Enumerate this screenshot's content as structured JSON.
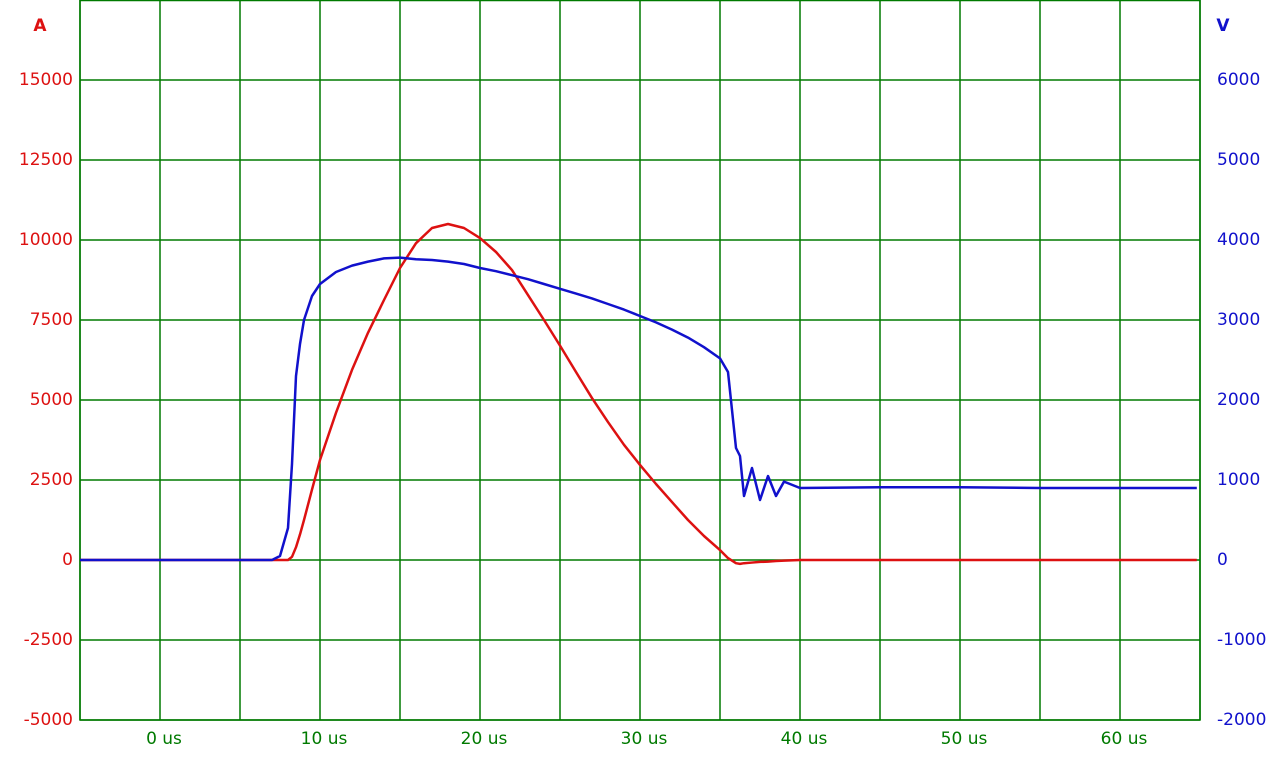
{
  "chart_data": {
    "type": "line",
    "ylabel": "A",
    "y2label": "V",
    "x": [
      -5,
      0,
      5,
      7,
      7.5,
      8,
      8.25,
      8.5,
      8.75,
      9,
      9.5,
      10,
      11,
      12,
      13,
      14,
      15,
      16,
      17,
      18,
      19,
      20,
      21,
      22,
      23,
      24,
      25,
      26,
      27,
      28,
      29,
      30,
      31,
      32,
      33,
      34,
      35,
      35.5,
      36,
      36.25,
      36.5,
      37,
      37.5,
      38,
      38.5,
      39,
      40,
      45,
      50,
      55,
      60,
      64.8
    ],
    "series": [
      {
        "color": "#dd1111",
        "values": [
          0,
          0,
          0,
          0,
          0,
          0,
          100,
          400,
          800,
          1250,
          2200,
          3125,
          4600,
          5940,
          7100,
          8125,
          9125,
          9900,
          10375,
          10500,
          10375,
          10060,
          9625,
          9060,
          8280,
          7500,
          6700,
          5875,
          5060,
          4310,
          3600,
          2970,
          2375,
          1810,
          1250,
          750,
          310,
          60,
          -100,
          -120,
          -100,
          -80,
          -60,
          -50,
          -30,
          -20,
          0,
          0,
          0,
          0,
          0,
          0
        ]
      },
      {
        "color": "#1111cc",
        "axis": "y2",
        "values": [
          0,
          0,
          0,
          0,
          50,
          400,
          1200,
          2300,
          2700,
          3000,
          3300,
          3450,
          3600,
          3680,
          3730,
          3770,
          3780,
          3760,
          3750,
          3730,
          3700,
          3650,
          3610,
          3560,
          3510,
          3450,
          3390,
          3330,
          3270,
          3200,
          3130,
          3050,
          2970,
          2880,
          2780,
          2660,
          2520,
          2350,
          1400,
          1300,
          800,
          1150,
          750,
          1050,
          800,
          980,
          900,
          910,
          910,
          900,
          900,
          900
        ]
      }
    ],
    "xlim": [
      -5,
      65
    ],
    "xticks": [
      {
        "value": 0,
        "label": "0 us"
      },
      {
        "value": 10,
        "label": "10 us"
      },
      {
        "value": 20,
        "label": "20 us"
      },
      {
        "value": 30,
        "label": "30 us"
      },
      {
        "value": 40,
        "label": "40 us"
      },
      {
        "value": 50,
        "label": "50 us"
      },
      {
        "value": 60,
        "label": "60 us"
      }
    ],
    "x_minor_ticks": [
      -5,
      5,
      15,
      25,
      35,
      45,
      55,
      65
    ],
    "ylim": [
      -5000,
      17500
    ],
    "yticks": [
      -5000,
      -2500,
      0,
      2500,
      5000,
      7500,
      10000,
      12500,
      15000
    ],
    "y2lim": [
      -2000,
      7000
    ],
    "y2ticks": [
      -2000,
      -1000,
      0,
      1000,
      2000,
      3000,
      4000,
      5000,
      6000
    ],
    "grid": true,
    "grid_color": "#007a00"
  }
}
